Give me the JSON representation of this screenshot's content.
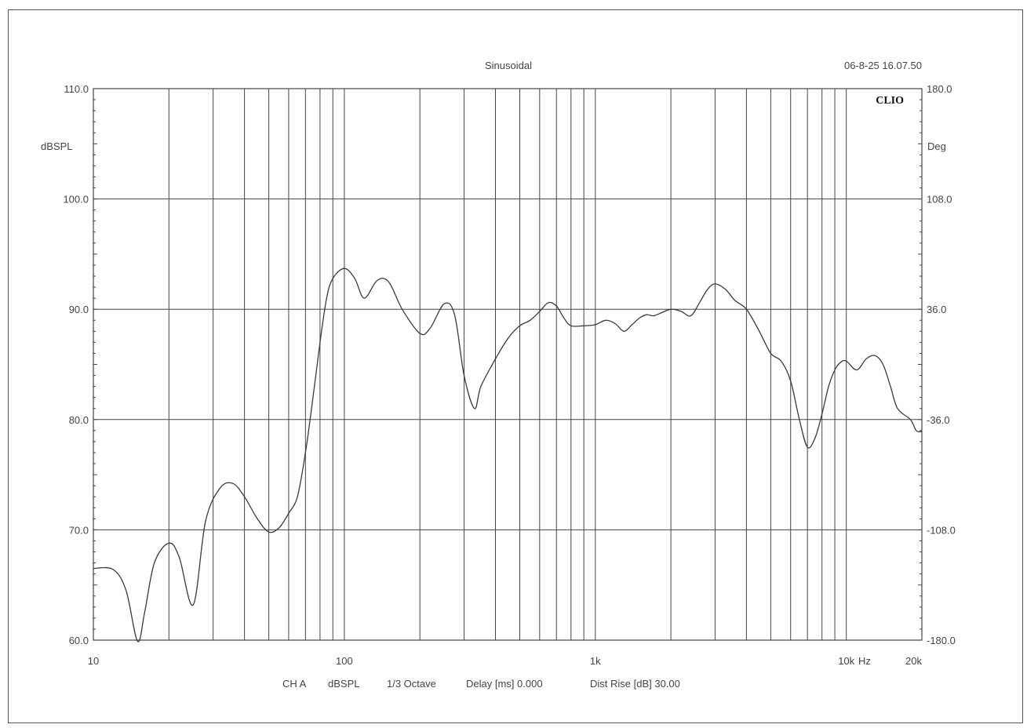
{
  "header": {
    "title": "Sinusoidal",
    "timestamp": "06-8-25 16.07.50",
    "logo": "CLIO"
  },
  "footer": {
    "channel": "CH A",
    "unit": "dBSPL",
    "smoothing": "1/3 Octave",
    "delay": "Delay [ms] 0.000",
    "dist_rise": "Dist Rise [dB] 30.00"
  },
  "colors": {
    "trace": "#3a3a3a",
    "grid": "#444444",
    "axis_text": "#444444"
  },
  "chart_data": {
    "type": "line",
    "title": "Sinusoidal",
    "xscale": "log",
    "xlim": [
      10,
      20000
    ],
    "ylim": [
      60,
      110
    ],
    "y2lim": [
      -180,
      180
    ],
    "ylabel": "dBSPL",
    "y2label": "Deg",
    "xunit": "Hz",
    "grid": true,
    "yticks": [
      "110.0",
      "100.0",
      "90.0",
      "80.0",
      "70.0",
      "60.0"
    ],
    "y2ticks": [
      "180.0",
      "108.0",
      "36.0",
      "-36.0",
      "-108.0",
      "-180.0"
    ],
    "xticks": [
      {
        "value": 10,
        "label": "10"
      },
      {
        "value": 100,
        "label": "100"
      },
      {
        "value": 1000,
        "label": "1k"
      },
      {
        "value": 10000,
        "label": "10k"
      },
      {
        "value": 20000,
        "label": "20k"
      }
    ],
    "series": [
      {
        "x": [
          10,
          12,
          13.5,
          15,
          16,
          17.5,
          20,
          22,
          25,
          28,
          32,
          36,
          40,
          45,
          50,
          55,
          60,
          65,
          70,
          75,
          80,
          85,
          90,
          100,
          110,
          120,
          135,
          150,
          170,
          200,
          220,
          250,
          275,
          300,
          330,
          350,
          400,
          450,
          500,
          550,
          600,
          650,
          700,
          750,
          800,
          900,
          1000,
          1100,
          1200,
          1300,
          1400,
          1500,
          1600,
          1700,
          1800,
          2000,
          2200,
          2400,
          2600,
          2800,
          3000,
          3300,
          3600,
          4000,
          4500,
          5000,
          5500,
          6000,
          6500,
          7000,
          7500,
          8000,
          8500,
          9000,
          9500,
          10000,
          11000,
          12000,
          13000,
          14000,
          15000,
          16000,
          18000,
          19000,
          20000
        ],
        "y": [
          66.5,
          66.4,
          64.5,
          59.9,
          62.5,
          67.0,
          68.8,
          67.5,
          63.2,
          70.8,
          73.8,
          74.2,
          73.0,
          71.0,
          69.8,
          70.2,
          71.5,
          73.0,
          77.0,
          82.0,
          87.0,
          91.0,
          92.8,
          93.7,
          92.8,
          91.0,
          92.6,
          92.5,
          90.0,
          87.8,
          88.3,
          90.5,
          89.5,
          84.0,
          81.0,
          83.0,
          85.5,
          87.4,
          88.5,
          89.0,
          89.8,
          90.6,
          90.3,
          89.2,
          88.5,
          88.5,
          88.6,
          89.0,
          88.7,
          88.0,
          88.6,
          89.2,
          89.5,
          89.4,
          89.6,
          90.0,
          89.8,
          89.4,
          90.6,
          91.8,
          92.3,
          91.8,
          90.8,
          90.0,
          88.0,
          86.0,
          85.3,
          83.5,
          80.0,
          77.5,
          78.3,
          80.5,
          83.0,
          84.5,
          85.2,
          85.3,
          84.5,
          85.5,
          85.8,
          85.0,
          83.0,
          81.0,
          80.0,
          79.0,
          78.9
        ]
      }
    ]
  }
}
